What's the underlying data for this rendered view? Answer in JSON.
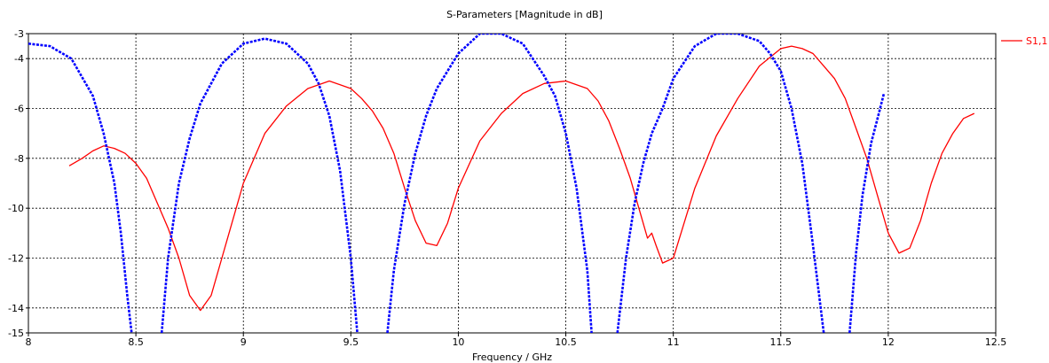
{
  "chart_data": {
    "type": "line",
    "title": "S-Parameters [Magnitude in dB]",
    "xlabel": "Frequency / GHz",
    "ylabel": "",
    "xlim": [
      8,
      12.5
    ],
    "ylim": [
      -15,
      -3
    ],
    "xticks": [
      "8",
      "8.5",
      "9",
      "9.5",
      "10",
      "10.5",
      "11",
      "11.5",
      "12",
      "12.5"
    ],
    "yticks": [
      "-3",
      "-4",
      "-6",
      "-8",
      "-10",
      "-12",
      "-14",
      "-15"
    ],
    "grid": true,
    "legend_position": "right",
    "series": [
      {
        "name": "S1,1",
        "color": "#ff0000",
        "style": "solid",
        "x": [
          8.19,
          8.25,
          8.3,
          8.35,
          8.4,
          8.45,
          8.5,
          8.55,
          8.6,
          8.65,
          8.7,
          8.75,
          8.8,
          8.85,
          8.9,
          9.0,
          9.1,
          9.2,
          9.3,
          9.4,
          9.5,
          9.55,
          9.6,
          9.65,
          9.7,
          9.75,
          9.8,
          9.85,
          9.9,
          9.95,
          10.0,
          10.1,
          10.2,
          10.3,
          10.4,
          10.5,
          10.6,
          10.65,
          10.7,
          10.75,
          10.8,
          10.85,
          10.88,
          10.9,
          10.92,
          10.95,
          11.0,
          11.1,
          11.2,
          11.3,
          11.4,
          11.5,
          11.55,
          11.6,
          11.65,
          11.7,
          11.75,
          11.8,
          11.85,
          11.9,
          11.95,
          12.0,
          12.05,
          12.1,
          12.15,
          12.2,
          12.25,
          12.3,
          12.35,
          12.4
        ],
        "y": [
          -8.3,
          -8.0,
          -7.7,
          -7.5,
          -7.6,
          -7.8,
          -8.2,
          -8.8,
          -9.8,
          -10.8,
          -12.0,
          -13.5,
          -14.1,
          -13.5,
          -12.0,
          -9.0,
          -7.0,
          -5.9,
          -5.2,
          -4.9,
          -5.2,
          -5.6,
          -6.1,
          -6.8,
          -7.8,
          -9.2,
          -10.5,
          -11.4,
          -11.5,
          -10.6,
          -9.2,
          -7.3,
          -6.2,
          -5.4,
          -5.0,
          -4.9,
          -5.2,
          -5.7,
          -6.5,
          -7.6,
          -8.8,
          -10.3,
          -11.2,
          -11.0,
          -11.5,
          -12.2,
          -12.0,
          -9.2,
          -7.1,
          -5.6,
          -4.3,
          -3.6,
          -3.5,
          -3.6,
          -3.8,
          -4.3,
          -4.8,
          -5.6,
          -6.8,
          -8.0,
          -9.5,
          -11.0,
          -11.8,
          -11.6,
          -10.5,
          -9.0,
          -7.8,
          -7.0,
          -6.4,
          -6.2
        ]
      },
      {
        "name": "",
        "color": "#0000ff",
        "style": "dashed",
        "segments": [
          {
            "x": [
              8.0,
              8.1,
              8.2,
              8.3,
              8.35,
              8.4,
              8.43,
              8.46,
              8.48
            ],
            "y": [
              -3.4,
              -3.5,
              -4.0,
              -5.5,
              -7.0,
              -9.0,
              -11.0,
              -13.5,
              -15.0
            ]
          },
          {
            "x": [
              8.62,
              8.65,
              8.7,
              8.75,
              8.8,
              8.9,
              9.0,
              9.1,
              9.2,
              9.3,
              9.35,
              9.4,
              9.45,
              9.5,
              9.53
            ],
            "y": [
              -15.0,
              -12.0,
              -9.0,
              -7.2,
              -5.8,
              -4.2,
              -3.4,
              -3.2,
              -3.4,
              -4.2,
              -5.0,
              -6.3,
              -8.5,
              -12.0,
              -15.0
            ]
          },
          {
            "x": [
              9.67,
              9.7,
              9.75,
              9.8,
              9.85,
              9.9,
              10.0,
              10.1,
              10.2,
              10.3,
              10.4,
              10.45,
              10.5,
              10.55,
              10.6,
              10.62
            ],
            "y": [
              -15.0,
              -12.5,
              -9.8,
              -7.8,
              -6.3,
              -5.2,
              -3.8,
              -3.0,
              -3.0,
              -3.4,
              -4.7,
              -5.5,
              -7.0,
              -9.2,
              -12.5,
              -15.0
            ]
          },
          {
            "x": [
              10.74,
              10.78,
              10.82,
              10.86,
              10.9,
              10.95,
              11.0,
              11.1,
              11.2,
              11.3,
              11.4,
              11.45,
              11.5,
              11.55,
              11.6,
              11.65,
              11.7
            ],
            "y": [
              -15.0,
              -12.0,
              -9.8,
              -8.2,
              -7.0,
              -6.0,
              -4.8,
              -3.5,
              -3.0,
              -3.0,
              -3.3,
              -3.8,
              -4.5,
              -6.0,
              -8.2,
              -11.5,
              -15.0
            ]
          },
          {
            "x": [
              11.82,
              11.85,
              11.88,
              11.92,
              11.95,
              11.98
            ],
            "y": [
              -15.0,
              -11.8,
              -9.5,
              -7.4,
              -6.4,
              -5.4
            ]
          }
        ]
      }
    ]
  }
}
